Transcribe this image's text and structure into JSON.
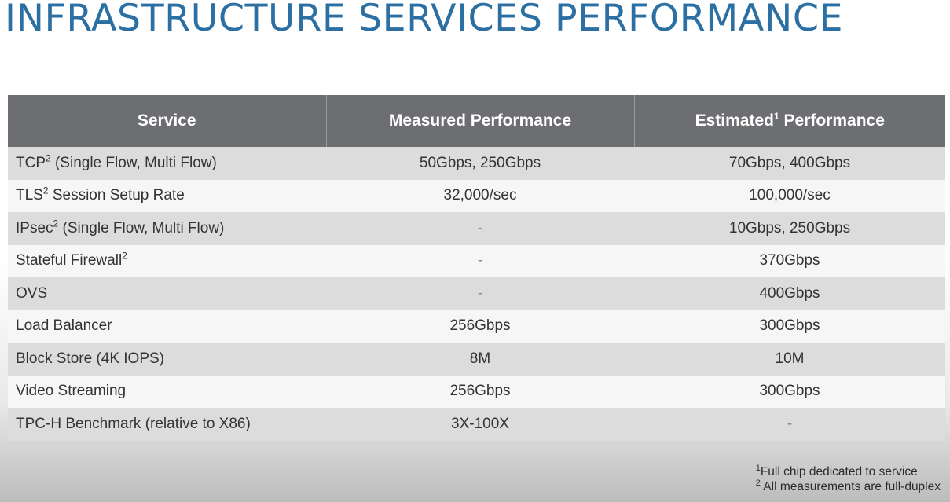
{
  "title": "INFRASTRUCTURE SERVICES PERFORMANCE",
  "table": {
    "headers": {
      "service": "Service",
      "measured": "Measured Performance",
      "estimated_prefix": "Estimated",
      "estimated_sup": "1",
      "estimated_suffix": " Performance"
    },
    "rows": [
      {
        "service": "TCP",
        "sup": "2",
        "suffix": " (Single Flow, Multi Flow)",
        "measured": "50Gbps, 250Gbps",
        "estimated": "70Gbps, 400Gbps"
      },
      {
        "service": "TLS",
        "sup": "2",
        "suffix": " Session Setup Rate",
        "measured": "32,000/sec",
        "estimated": "100,000/sec"
      },
      {
        "service": "IPsec",
        "sup": "2",
        "suffix": " (Single Flow, Multi Flow)",
        "measured": "-",
        "estimated": "10Gbps, 250Gbps"
      },
      {
        "service": "Stateful Firewall",
        "sup": "2",
        "suffix": "",
        "measured": "-",
        "estimated": "370Gbps"
      },
      {
        "service": "OVS",
        "sup": "",
        "suffix": "",
        "measured": "-",
        "estimated": "400Gbps"
      },
      {
        "service": "Load Balancer",
        "sup": "",
        "suffix": "",
        "measured": "256Gbps",
        "estimated": "300Gbps"
      },
      {
        "service": "Block Store (4K IOPS)",
        "sup": "",
        "suffix": "",
        "measured": "8M",
        "estimated": "10M"
      },
      {
        "service": "Video Streaming",
        "sup": "",
        "suffix": "",
        "measured": "256Gbps",
        "estimated": "300Gbps"
      },
      {
        "service": "TPC-H Benchmark (relative to X86)",
        "sup": "",
        "suffix": "",
        "measured": "3X-100X",
        "estimated": "-"
      }
    ]
  },
  "footnotes": [
    {
      "mark": "1",
      "text": "Full chip dedicated to service"
    },
    {
      "mark": "2",
      "text": "All measurements are full-duplex"
    }
  ]
}
